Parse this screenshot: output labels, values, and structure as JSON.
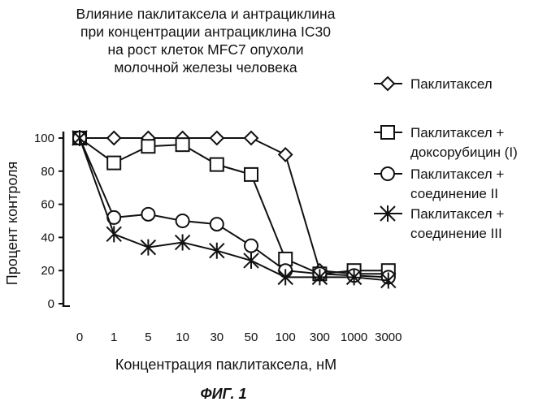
{
  "chart_data": {
    "type": "line",
    "title_lines": [
      "Влияние паклитаксела и антрациклина",
      "при концентрации антрациклина IC30",
      "на рост клеток MFC7 опухоли",
      "молочной железы человека"
    ],
    "xlabel": "Концентрация паклитаксела, нМ",
    "ylabel": "Процент контроля",
    "categories": [
      "0",
      "1",
      "5",
      "10",
      "30",
      "50",
      "100",
      "300",
      "1000",
      "3000"
    ],
    "y_ticks": [
      "0",
      "20",
      "40",
      "60",
      "80",
      "100"
    ],
    "ylim": [
      0,
      100
    ],
    "grid": false,
    "legend_position": "right",
    "series": [
      {
        "name_lines": [
          "Паклитаксел"
        ],
        "marker": "diamond",
        "values": [
          100,
          100,
          100,
          100,
          100,
          100,
          90,
          20,
          18,
          18
        ]
      },
      {
        "name_lines": [
          "Паклитаксел +",
          "доксорубицин (I)"
        ],
        "marker": "square",
        "values": [
          100,
          85,
          95,
          96,
          84,
          78,
          27,
          18,
          20,
          20
        ]
      },
      {
        "name_lines": [
          "Паклитаксел +",
          "соединение II"
        ],
        "marker": "circle",
        "values": [
          100,
          52,
          54,
          50,
          48,
          35,
          20,
          18,
          17,
          16
        ]
      },
      {
        "name_lines": [
          "Паклитаксел +",
          "соединение III"
        ],
        "marker": "star",
        "values": [
          100,
          42,
          34,
          37,
          32,
          26,
          16,
          16,
          16,
          14
        ]
      }
    ]
  },
  "caption": "ФИГ. 1"
}
